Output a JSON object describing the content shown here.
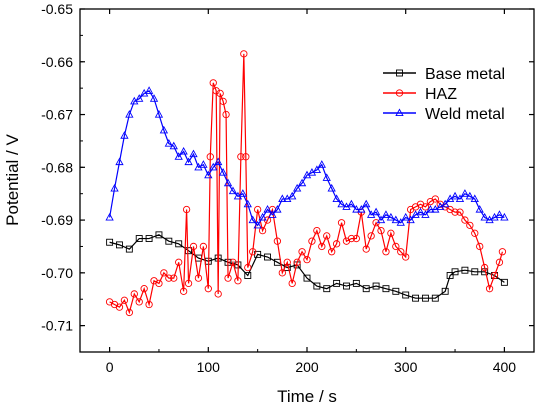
{
  "chart_data": {
    "type": "line",
    "title": "",
    "xlabel": "Time / s",
    "ylabel": "Potential / V",
    "xlim": [
      -30,
      430
    ],
    "ylim": [
      -0.715,
      -0.65
    ],
    "xticks": [
      0,
      100,
      200,
      300,
      400
    ],
    "xtick_labels": [
      "0",
      "100",
      "200",
      "300",
      "400"
    ],
    "yticks": [
      -0.71,
      -0.7,
      -0.69,
      -0.68,
      -0.67,
      -0.66,
      -0.65
    ],
    "ytick_labels": [
      "-0.71",
      "-0.70",
      "-0.69",
      "-0.68",
      "-0.67",
      "-0.66",
      "-0.65"
    ],
    "grid": false,
    "legend_position": "top-right",
    "series": [
      {
        "name": "Base metal",
        "color": "#000000",
        "marker": "square",
        "points": [
          [
            0,
            -0.6942
          ],
          [
            10,
            -0.6947
          ],
          [
            20,
            -0.6955
          ],
          [
            30,
            -0.6935
          ],
          [
            40,
            -0.6935
          ],
          [
            50,
            -0.6928
          ],
          [
            60,
            -0.694
          ],
          [
            70,
            -0.6945
          ],
          [
            80,
            -0.6958
          ],
          [
            90,
            -0.6972
          ],
          [
            100,
            -0.6978
          ],
          [
            110,
            -0.6972
          ],
          [
            120,
            -0.698
          ],
          [
            130,
            -0.6985
          ],
          [
            140,
            -0.7005
          ],
          [
            150,
            -0.6965
          ],
          [
            160,
            -0.697
          ],
          [
            170,
            -0.698
          ],
          [
            180,
            -0.699
          ],
          [
            190,
            -0.6985
          ],
          [
            200,
            -0.701
          ],
          [
            210,
            -0.7025
          ],
          [
            220,
            -0.703
          ],
          [
            230,
            -0.702
          ],
          [
            240,
            -0.7025
          ],
          [
            250,
            -0.702
          ],
          [
            260,
            -0.703
          ],
          [
            270,
            -0.7025
          ],
          [
            280,
            -0.703
          ],
          [
            290,
            -0.7035
          ],
          [
            300,
            -0.7042
          ],
          [
            310,
            -0.7048
          ],
          [
            320,
            -0.7048
          ],
          [
            330,
            -0.7048
          ],
          [
            340,
            -0.7035
          ],
          [
            345,
            -0.7005
          ],
          [
            350,
            -0.6998
          ],
          [
            360,
            -0.6995
          ],
          [
            370,
            -0.6998
          ],
          [
            380,
            -0.6998
          ],
          [
            390,
            -0.7005
          ],
          [
            400,
            -0.7018
          ]
        ]
      },
      {
        "name": "HAZ",
        "color": "#ff0000",
        "marker": "circle",
        "points": [
          [
            0,
            -0.7055
          ],
          [
            5,
            -0.706
          ],
          [
            10,
            -0.7065
          ],
          [
            15,
            -0.7052
          ],
          [
            20,
            -0.7075
          ],
          [
            25,
            -0.704
          ],
          [
            30,
            -0.7055
          ],
          [
            35,
            -0.703
          ],
          [
            40,
            -0.706
          ],
          [
            45,
            -0.7015
          ],
          [
            50,
            -0.702
          ],
          [
            55,
            -0.7
          ],
          [
            60,
            -0.701
          ],
          [
            65,
            -0.701
          ],
          [
            70,
            -0.698
          ],
          [
            75,
            -0.7035
          ],
          [
            78,
            -0.688
          ],
          [
            80,
            -0.702
          ],
          [
            85,
            -0.695
          ],
          [
            90,
            -0.701
          ],
          [
            95,
            -0.695
          ],
          [
            100,
            -0.703
          ],
          [
            102,
            -0.678
          ],
          [
            105,
            -0.664
          ],
          [
            108,
            -0.6655
          ],
          [
            110,
            -0.704
          ],
          [
            112,
            -0.666
          ],
          [
            115,
            -0.6675
          ],
          [
            118,
            -0.67
          ],
          [
            120,
            -0.701
          ],
          [
            125,
            -0.698
          ],
          [
            130,
            -0.7015
          ],
          [
            133,
            -0.678
          ],
          [
            136,
            -0.6585
          ],
          [
            138,
            -0.678
          ],
          [
            140,
            -0.699
          ],
          [
            145,
            -0.696
          ],
          [
            150,
            -0.688
          ],
          [
            155,
            -0.692
          ],
          [
            160,
            -0.69
          ],
          [
            165,
            -0.688
          ],
          [
            170,
            -0.694
          ],
          [
            175,
            -0.7
          ],
          [
            180,
            -0.698
          ],
          [
            185,
            -0.702
          ],
          [
            190,
            -0.698
          ],
          [
            195,
            -0.696
          ],
          [
            200,
            -0.6975
          ],
          [
            205,
            -0.694
          ],
          [
            210,
            -0.692
          ],
          [
            215,
            -0.695
          ],
          [
            220,
            -0.693
          ],
          [
            225,
            -0.696
          ],
          [
            230,
            -0.6945
          ],
          [
            235,
            -0.6905
          ],
          [
            240,
            -0.694
          ],
          [
            245,
            -0.6935
          ],
          [
            250,
            -0.6935
          ],
          [
            255,
            -0.6885
          ],
          [
            260,
            -0.6955
          ],
          [
            265,
            -0.693
          ],
          [
            270,
            -0.6905
          ],
          [
            275,
            -0.692
          ],
          [
            280,
            -0.696
          ],
          [
            285,
            -0.6925
          ],
          [
            290,
            -0.695
          ],
          [
            295,
            -0.696
          ],
          [
            300,
            -0.697
          ],
          [
            305,
            -0.688
          ],
          [
            310,
            -0.6875
          ],
          [
            315,
            -0.687
          ],
          [
            320,
            -0.6875
          ],
          [
            325,
            -0.6865
          ],
          [
            330,
            -0.686
          ],
          [
            335,
            -0.687
          ],
          [
            340,
            -0.6875
          ],
          [
            345,
            -0.688
          ],
          [
            350,
            -0.6885
          ],
          [
            355,
            -0.6885
          ],
          [
            360,
            -0.69
          ],
          [
            365,
            -0.691
          ],
          [
            370,
            -0.6925
          ],
          [
            375,
            -0.695
          ],
          [
            380,
            -0.699
          ],
          [
            385,
            -0.703
          ],
          [
            390,
            -0.7005
          ],
          [
            395,
            -0.698
          ],
          [
            398,
            -0.696
          ]
        ]
      },
      {
        "name": "Weld metal",
        "color": "#0000ff",
        "marker": "triangle",
        "points": [
          [
            0,
            -0.6895
          ],
          [
            5,
            -0.684
          ],
          [
            10,
            -0.679
          ],
          [
            15,
            -0.674
          ],
          [
            20,
            -0.67
          ],
          [
            25,
            -0.6675
          ],
          [
            30,
            -0.667
          ],
          [
            35,
            -0.666
          ],
          [
            40,
            -0.6655
          ],
          [
            45,
            -0.667
          ],
          [
            50,
            -0.67
          ],
          [
            55,
            -0.673
          ],
          [
            60,
            -0.6755
          ],
          [
            65,
            -0.676
          ],
          [
            70,
            -0.678
          ],
          [
            75,
            -0.677
          ],
          [
            80,
            -0.679
          ],
          [
            85,
            -0.6775
          ],
          [
            90,
            -0.68
          ],
          [
            95,
            -0.6795
          ],
          [
            100,
            -0.6815
          ],
          [
            105,
            -0.68
          ],
          [
            110,
            -0.679
          ],
          [
            115,
            -0.681
          ],
          [
            120,
            -0.683
          ],
          [
            125,
            -0.6845
          ],
          [
            130,
            -0.6855
          ],
          [
            135,
            -0.685
          ],
          [
            140,
            -0.687
          ],
          [
            145,
            -0.69
          ],
          [
            150,
            -0.691
          ],
          [
            155,
            -0.6895
          ],
          [
            160,
            -0.688
          ],
          [
            165,
            -0.689
          ],
          [
            170,
            -0.688
          ],
          [
            175,
            -0.686
          ],
          [
            180,
            -0.686
          ],
          [
            185,
            -0.6855
          ],
          [
            190,
            -0.684
          ],
          [
            195,
            -0.683
          ],
          [
            200,
            -0.6815
          ],
          [
            205,
            -0.681
          ],
          [
            210,
            -0.6805
          ],
          [
            215,
            -0.6795
          ],
          [
            220,
            -0.682
          ],
          [
            225,
            -0.684
          ],
          [
            230,
            -0.686
          ],
          [
            235,
            -0.687
          ],
          [
            240,
            -0.6875
          ],
          [
            245,
            -0.687
          ],
          [
            250,
            -0.688
          ],
          [
            255,
            -0.688
          ],
          [
            260,
            -0.687
          ],
          [
            265,
            -0.689
          ],
          [
            270,
            -0.6885
          ],
          [
            275,
            -0.69
          ],
          [
            280,
            -0.689
          ],
          [
            285,
            -0.6895
          ],
          [
            290,
            -0.69
          ],
          [
            295,
            -0.6905
          ],
          [
            300,
            -0.6895
          ],
          [
            305,
            -0.69
          ],
          [
            310,
            -0.689
          ],
          [
            315,
            -0.6885
          ],
          [
            320,
            -0.689
          ],
          [
            325,
            -0.688
          ],
          [
            330,
            -0.688
          ],
          [
            335,
            -0.6875
          ],
          [
            340,
            -0.687
          ],
          [
            345,
            -0.686
          ],
          [
            350,
            -0.6855
          ],
          [
            355,
            -0.686
          ],
          [
            360,
            -0.685
          ],
          [
            365,
            -0.6855
          ],
          [
            370,
            -0.686
          ],
          [
            375,
            -0.688
          ],
          [
            380,
            -0.6895
          ],
          [
            385,
            -0.69
          ],
          [
            390,
            -0.6895
          ],
          [
            395,
            -0.689
          ],
          [
            400,
            -0.6895
          ]
        ]
      }
    ]
  }
}
